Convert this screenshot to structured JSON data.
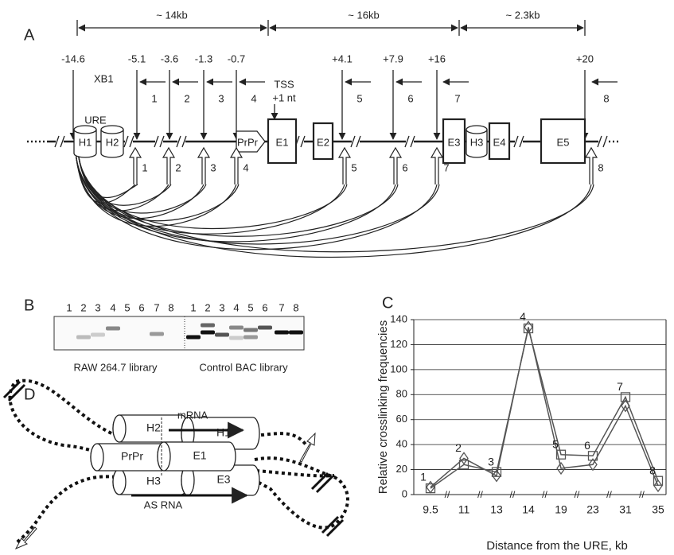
{
  "panel_a": {
    "label": "A",
    "spans": [
      "~ 14kb",
      "~ 16kb",
      "~ 2.3kb"
    ],
    "positions": [
      "-14.6",
      "-5.1",
      "-3.6",
      "-1.3",
      "-0.7",
      "+4.1",
      "+7.9",
      "+16",
      "+20"
    ],
    "site": "XB1",
    "region": "URE",
    "tss": "TSS",
    "tss_offset": "+1 nt",
    "primers": [
      "1",
      "2",
      "3",
      "4",
      "5",
      "6",
      "7",
      "8"
    ],
    "probes": [
      "1",
      "2",
      "3",
      "4",
      "5",
      "6",
      "7",
      "8"
    ],
    "elements": [
      "H1",
      "H2",
      "PrPr",
      "E1",
      "E2",
      "E3",
      "H3",
      "E4",
      "E5"
    ]
  },
  "panel_b": {
    "label": "B",
    "lanes_left": [
      "1",
      "2",
      "3",
      "4",
      "5",
      "6",
      "7",
      "8"
    ],
    "lanes_right": [
      "1",
      "2",
      "3",
      "4",
      "5",
      "6",
      "7",
      "8"
    ],
    "caption_left": "RAW 264.7 library",
    "caption_right": "Control BAC library"
  },
  "chart_data": {
    "type": "line",
    "panel_label": "C",
    "categories": [
      "9.5",
      "11",
      "13",
      "14",
      "19",
      "23",
      "31",
      "35"
    ],
    "point_labels": [
      "1",
      "2",
      "3",
      "4",
      "5",
      "6",
      "7",
      "8"
    ],
    "y_label": "Relative crosslinking frequencies",
    "x_label": "Distance from the URE, kb",
    "ylim": [
      0,
      140
    ],
    "yticks": [
      0,
      20,
      40,
      60,
      80,
      100,
      120,
      140
    ],
    "grid": true,
    "series": [
      {
        "color": "#555555",
        "marker": "square",
        "values": [
          5,
          24,
          18,
          133,
          32,
          31,
          78,
          11
        ]
      },
      {
        "color": "#555555",
        "marker": "diamond",
        "values": [
          6,
          29,
          15,
          134,
          21,
          24,
          71,
          7
        ]
      }
    ]
  },
  "panel_d": {
    "label": "D",
    "mrna": "mRNA",
    "as_rna": "AS RNA",
    "elements": [
      "H2",
      "H1",
      "PrPr",
      "E1",
      "H3",
      "E3"
    ]
  }
}
